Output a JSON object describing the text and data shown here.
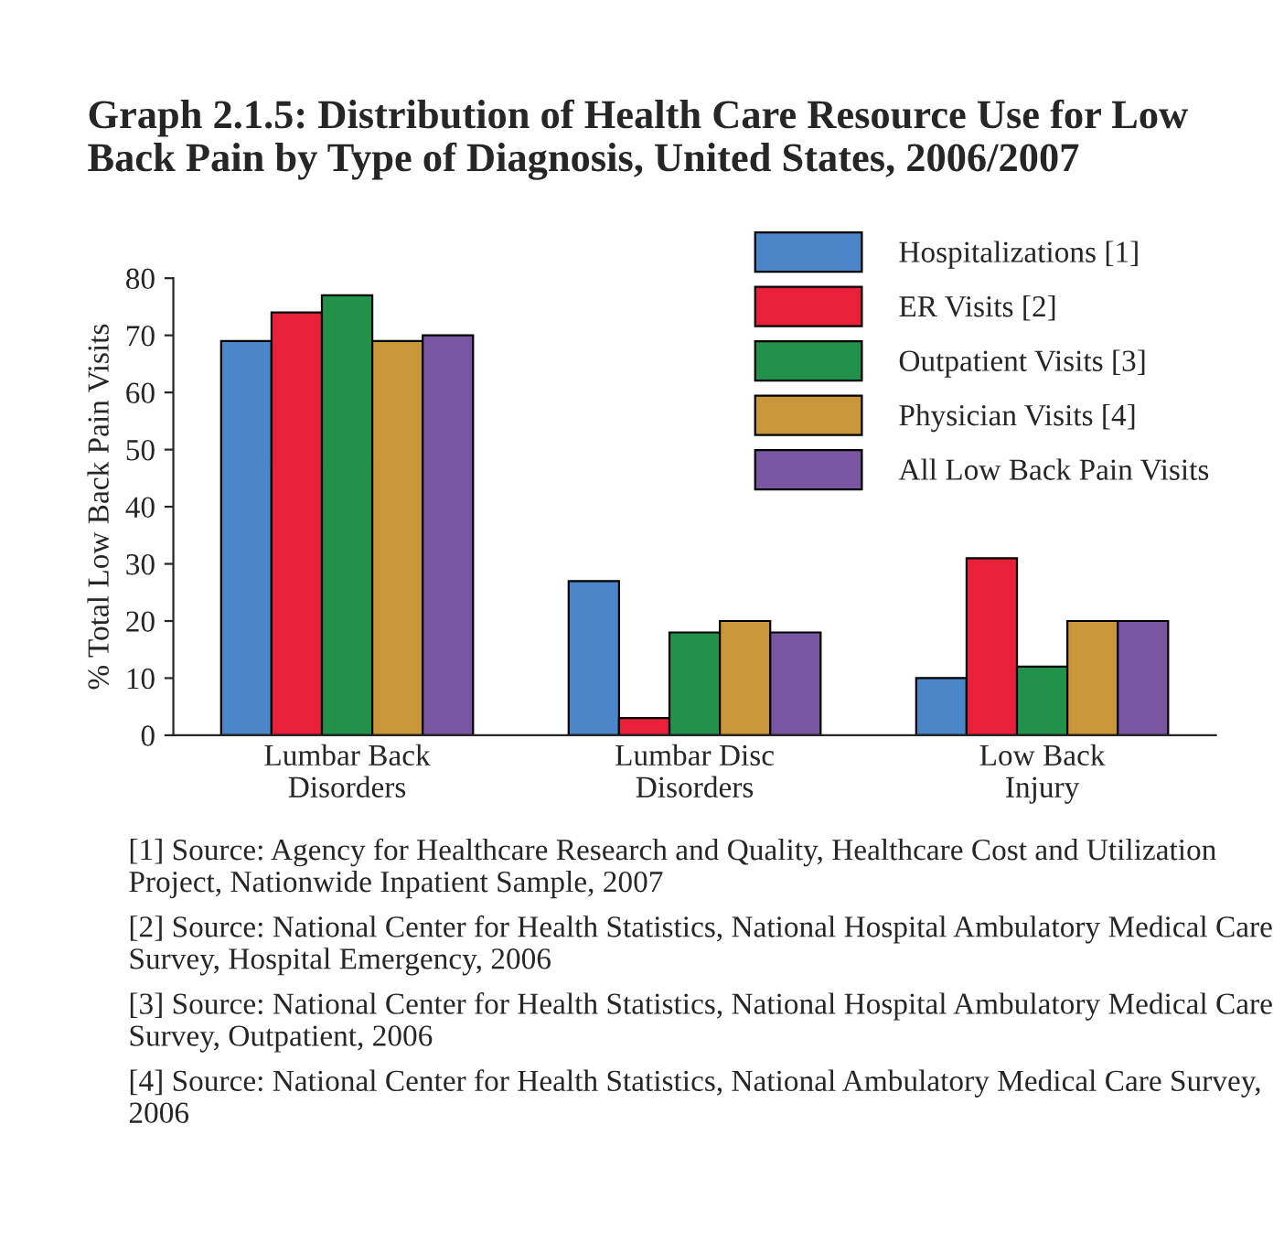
{
  "chart_data": {
    "type": "bar",
    "title": "Graph 2.1.5: Distribution of Health Care Resource Use for Low Back Pain by Type of Diagnosis, United States, 2006/2007",
    "ylabel": "% Total Low Back Pain Visits",
    "categories": [
      "Lumbar Back\nDisorders",
      "Lumbar Disc\nDisorders",
      "Low Back\nInjury"
    ],
    "series": [
      {
        "name": "Hospitalizations [1]",
        "color": "#4a86c8",
        "values": [
          69,
          27,
          10
        ]
      },
      {
        "name": "ER Visits [2]",
        "color": "#e8203a",
        "values": [
          74,
          3,
          31
        ]
      },
      {
        "name": "Outpatient Visits [3]",
        "color": "#22914a",
        "values": [
          77,
          18,
          12
        ]
      },
      {
        "name": "Physician Visits [4]",
        "color": "#c9973a",
        "values": [
          69,
          20,
          20
        ]
      },
      {
        "name": "All Low Back Pain Visits",
        "color": "#7b56a0",
        "values": [
          70,
          18,
          20
        ]
      }
    ],
    "ylim": [
      0,
      80
    ],
    "yticks": [
      0,
      10,
      20,
      30,
      40,
      50,
      60,
      70,
      80
    ],
    "grid": false,
    "legend": "top right",
    "annotations": [
      "[1] Source: Agency for Healthcare Research and Quality, Healthcare Cost and Utilization Project, Nationwide Inpatient Sample, 2007",
      "[2] Source: National Center for Health Statistics, National Hospital Ambulatory Medical Care Survey, Hospital Emergency, 2006",
      "[3] Source: National Center for Health Statistics, National Hospital Ambulatory Medical Care Survey, Outpatient, 2006",
      "[4] Source: National Center for Health Statistics, National Ambulatory Medical Care Survey, 2006"
    ]
  }
}
